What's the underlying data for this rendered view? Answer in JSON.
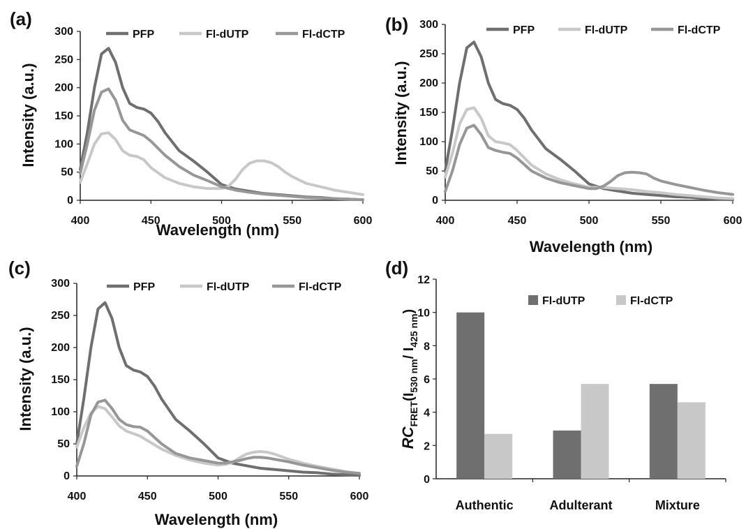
{
  "colors": {
    "PFP": "#6f6f6f",
    "Fl-dUTP": "#c8c8c8",
    "Fl-dCTP": "#979797",
    "bar_dUTP": "#6f6f6f",
    "bar_dCTP": "#c8c8c8",
    "axis": "#222222"
  },
  "chart_data": [
    {
      "panel_label": "(a)",
      "type": "line",
      "xlabel": "Wavelength (nm)",
      "ylabel": "Intensity (a.u.)",
      "xlim": [
        400,
        600
      ],
      "ylim": [
        0,
        300
      ],
      "xticks": [
        "400",
        "450",
        "500",
        "550",
        "600"
      ],
      "yticks": [
        "0",
        "50",
        "100",
        "150",
        "200",
        "250",
        "300"
      ],
      "legend_position": "top",
      "legend": [
        "PFP",
        "Fl-dUTP",
        "Fl-dCTP"
      ],
      "series": [
        {
          "name": "PFP",
          "x": [
            400,
            405,
            410,
            415,
            420,
            425,
            430,
            435,
            440,
            445,
            450,
            455,
            460,
            470,
            480,
            490,
            500,
            510,
            520,
            530,
            540,
            550,
            560,
            570,
            580,
            590,
            600
          ],
          "y": [
            55,
            120,
            200,
            260,
            270,
            245,
            200,
            172,
            165,
            162,
            155,
            140,
            120,
            88,
            70,
            50,
            28,
            20,
            16,
            12,
            10,
            8,
            6,
            5,
            3,
            2,
            1
          ]
        },
        {
          "name": "Fl-dUTP",
          "x": [
            400,
            405,
            410,
            415,
            420,
            425,
            430,
            435,
            440,
            445,
            450,
            460,
            470,
            480,
            490,
            500,
            505,
            510,
            515,
            520,
            525,
            530,
            535,
            540,
            545,
            550,
            560,
            570,
            580,
            590,
            600
          ],
          "y": [
            32,
            65,
            100,
            118,
            120,
            108,
            88,
            80,
            78,
            72,
            58,
            40,
            30,
            24,
            21,
            21,
            25,
            38,
            55,
            66,
            70,
            70,
            67,
            60,
            50,
            42,
            30,
            24,
            18,
            14,
            10
          ]
        },
        {
          "name": "Fl-dCTP",
          "x": [
            400,
            405,
            410,
            415,
            420,
            425,
            430,
            435,
            440,
            445,
            450,
            460,
            470,
            480,
            490,
            500,
            510,
            520,
            530,
            540,
            550,
            560,
            570,
            580,
            590,
            600
          ],
          "y": [
            48,
            100,
            160,
            192,
            198,
            178,
            142,
            125,
            120,
            115,
            105,
            80,
            60,
            45,
            35,
            24,
            18,
            14,
            11,
            9,
            7,
            5,
            4,
            3,
            2,
            1
          ]
        }
      ]
    },
    {
      "panel_label": "(b)",
      "type": "line",
      "xlabel": "Wavelength (nm)",
      "ylabel": "Intensity (a.u.)",
      "xlim": [
        400,
        600
      ],
      "ylim": [
        0,
        300
      ],
      "xticks": [
        "400",
        "450",
        "500",
        "550",
        "600"
      ],
      "yticks": [
        "0",
        "50",
        "100",
        "150",
        "200",
        "250",
        "300"
      ],
      "legend_position": "top",
      "legend": [
        "PFP",
        "Fl-dUTP",
        "Fl-dCTP"
      ],
      "series": [
        {
          "name": "PFP",
          "x": [
            400,
            405,
            410,
            415,
            420,
            425,
            430,
            435,
            440,
            445,
            450,
            455,
            460,
            470,
            480,
            490,
            500,
            510,
            520,
            530,
            540,
            550,
            560,
            570,
            580,
            590,
            600
          ],
          "y": [
            50,
            120,
            200,
            260,
            270,
            245,
            200,
            172,
            165,
            162,
            155,
            140,
            120,
            88,
            70,
            50,
            28,
            20,
            16,
            12,
            10,
            8,
            6,
            5,
            3,
            2,
            1
          ]
        },
        {
          "name": "Fl-dUTP",
          "x": [
            400,
            405,
            410,
            415,
            420,
            425,
            430,
            435,
            440,
            445,
            450,
            460,
            470,
            480,
            490,
            500,
            510,
            520,
            530,
            540,
            550,
            560,
            570,
            580,
            590,
            600
          ],
          "y": [
            40,
            80,
            130,
            155,
            158,
            140,
            110,
            100,
            98,
            95,
            85,
            60,
            45,
            35,
            28,
            22,
            22,
            20,
            18,
            15,
            13,
            10,
            8,
            6,
            4,
            3
          ]
        },
        {
          "name": "Fl-dCTP",
          "x": [
            400,
            405,
            410,
            415,
            420,
            425,
            430,
            435,
            440,
            445,
            450,
            460,
            470,
            480,
            490,
            500,
            505,
            510,
            515,
            520,
            525,
            530,
            535,
            540,
            545,
            550,
            560,
            570,
            580,
            590,
            600
          ],
          "y": [
            15,
            50,
            95,
            123,
            128,
            112,
            90,
            85,
            82,
            80,
            72,
            50,
            38,
            30,
            25,
            20,
            20,
            24,
            32,
            42,
            47,
            48,
            47,
            45,
            38,
            33,
            27,
            22,
            17,
            13,
            10
          ]
        }
      ]
    },
    {
      "panel_label": "(c)",
      "type": "line",
      "xlabel": "Wavelength (nm)",
      "ylabel": "Intensity (a.u.)",
      "xlim": [
        400,
        600
      ],
      "ylim": [
        0,
        300
      ],
      "xticks": [
        "400",
        "450",
        "500",
        "550",
        "600"
      ],
      "yticks": [
        "0",
        "50",
        "100",
        "150",
        "200",
        "250",
        "300"
      ],
      "legend_position": "top",
      "legend": [
        "PFP",
        "Fl-dUTP",
        "Fl-dCTP"
      ],
      "series": [
        {
          "name": "PFP",
          "x": [
            400,
            405,
            410,
            415,
            420,
            425,
            430,
            435,
            440,
            445,
            450,
            455,
            460,
            470,
            480,
            490,
            500,
            510,
            520,
            530,
            540,
            550,
            560,
            570,
            580,
            590,
            600
          ],
          "y": [
            50,
            120,
            200,
            260,
            270,
            245,
            200,
            172,
            165,
            162,
            155,
            140,
            120,
            88,
            70,
            50,
            28,
            20,
            16,
            12,
            10,
            8,
            6,
            5,
            3,
            2,
            1
          ]
        },
        {
          "name": "Fl-dUTP",
          "x": [
            400,
            405,
            410,
            415,
            420,
            425,
            430,
            435,
            440,
            445,
            450,
            460,
            470,
            480,
            490,
            500,
            505,
            510,
            515,
            520,
            525,
            530,
            535,
            540,
            545,
            550,
            560,
            570,
            580,
            590,
            600
          ],
          "y": [
            45,
            75,
            98,
            108,
            105,
            92,
            78,
            70,
            66,
            62,
            55,
            42,
            32,
            25,
            20,
            17,
            18,
            21,
            28,
            34,
            37,
            38,
            37,
            34,
            30,
            26,
            20,
            15,
            11,
            7,
            4
          ]
        },
        {
          "name": "Fl-dCTP",
          "x": [
            400,
            405,
            410,
            415,
            420,
            425,
            430,
            435,
            440,
            445,
            450,
            460,
            470,
            480,
            490,
            500,
            505,
            510,
            515,
            520,
            525,
            530,
            535,
            540,
            545,
            550,
            560,
            570,
            580,
            590,
            600
          ],
          "y": [
            15,
            50,
            95,
            115,
            118,
            105,
            88,
            80,
            77,
            76,
            70,
            50,
            35,
            28,
            24,
            20,
            20,
            22,
            24,
            27,
            29,
            29,
            28,
            26,
            24,
            22,
            17,
            13,
            9,
            6,
            4
          ]
        }
      ]
    },
    {
      "panel_label": "(d)",
      "type": "bar",
      "categories": [
        "Authentic",
        "Adulterant",
        "Mixture"
      ],
      "ylim": [
        0,
        12
      ],
      "yticks": [
        "0",
        "2",
        "4",
        "6",
        "8",
        "10",
        "12"
      ],
      "ylabel_parts": [
        "RC",
        "FRET",
        "(I",
        "530 nm",
        "/ I",
        "425 nm",
        ")"
      ],
      "legend_position": "top-right",
      "legend": [
        "Fl-dUTP",
        "Fl-dCTP"
      ],
      "series": [
        {
          "name": "Fl-dUTP",
          "values": [
            10.0,
            2.9,
            5.7
          ]
        },
        {
          "name": "Fl-dCTP",
          "values": [
            2.7,
            5.7,
            4.6
          ]
        }
      ]
    }
  ]
}
